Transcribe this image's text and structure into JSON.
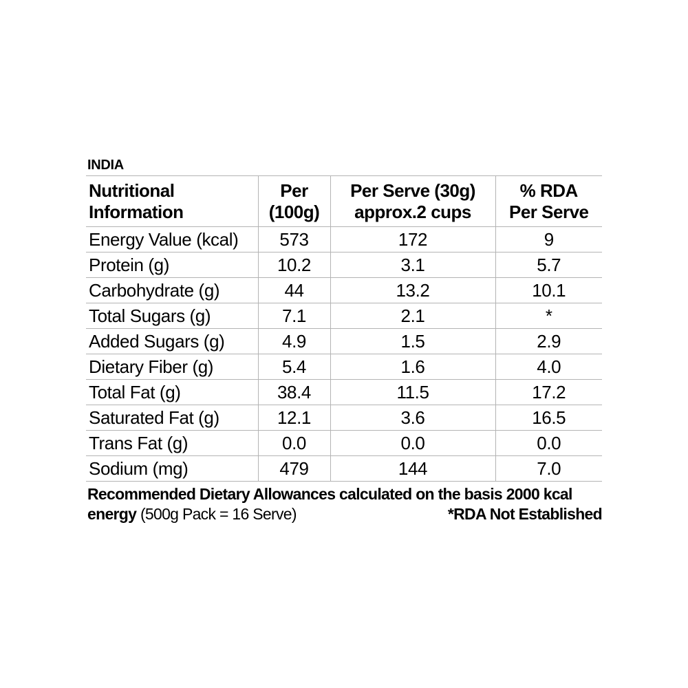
{
  "region_label": "INDIA",
  "table": {
    "headers": [
      {
        "line1": "Nutritional",
        "line2": "Information"
      },
      {
        "line1": "Per",
        "line2": "(100g)"
      },
      {
        "line1": "Per Serve (30g)",
        "line2": "approx.2 cups"
      },
      {
        "line1": "% RDA",
        "line2": "Per Serve"
      }
    ],
    "rows": [
      {
        "label": "Energy Value (kcal)",
        "per100g": "573",
        "per_serve": "172",
        "rda_per_serve": "9"
      },
      {
        "label": "Protein (g)",
        "per100g": "10.2",
        "per_serve": "3.1",
        "rda_per_serve": "5.7"
      },
      {
        "label": "Carbohydrate (g)",
        "per100g": "44",
        "per_serve": "13.2",
        "rda_per_serve": "10.1"
      },
      {
        "label": "Total Sugars (g)",
        "per100g": "7.1",
        "per_serve": "2.1",
        "rda_per_serve": "*"
      },
      {
        "label": "Added Sugars (g)",
        "per100g": "4.9",
        "per_serve": "1.5",
        "rda_per_serve": "2.9"
      },
      {
        "label": "Dietary Fiber (g)",
        "per100g": "5.4",
        "per_serve": "1.6",
        "rda_per_serve": "4.0"
      },
      {
        "label": "Total Fat (g)",
        "per100g": "38.4",
        "per_serve": "11.5",
        "rda_per_serve": "17.2"
      },
      {
        "label": "Saturated Fat (g)",
        "per100g": "12.1",
        "per_serve": "3.6",
        "rda_per_serve": "16.5"
      },
      {
        "label": "Trans Fat (g)",
        "per100g": "0.0",
        "per_serve": "0.0",
        "rda_per_serve": "0.0"
      },
      {
        "label": "Sodium (mg)",
        "per100g": "479",
        "per_serve": "144",
        "rda_per_serve": "7.0"
      }
    ]
  },
  "footnote": {
    "line1": "Recommended Dietary Allowances calculated on the basis 2000 kcal",
    "line2_bold": "energy",
    "line2_regular": "(500g Pack = 16 Serve)",
    "note_right": "*RDA Not Established"
  },
  "colors": {
    "text": "#000000",
    "grid_line": "#b3b3b3",
    "background": "#ffffff"
  }
}
